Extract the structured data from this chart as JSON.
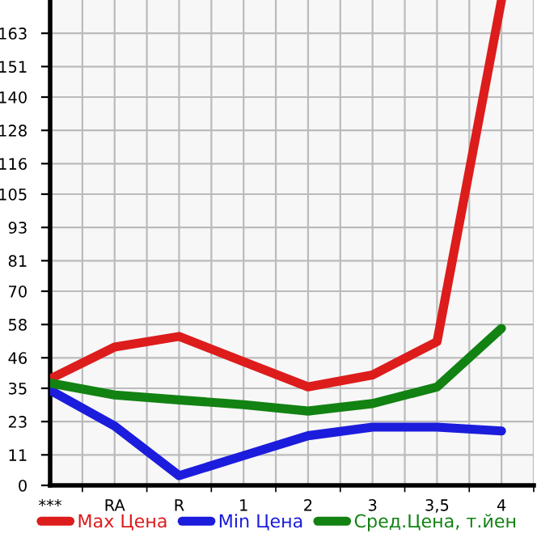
{
  "chart_data": {
    "type": "line",
    "categories": [
      "***",
      "RA",
      "R",
      "1",
      "2",
      "3",
      "3,5",
      "4"
    ],
    "series": [
      {
        "name": "Max Цена",
        "color": "#dd1c1c",
        "values": [
          38.4,
          49.9,
          53.7,
          44.6,
          35.5,
          39.8,
          51.8,
          175
        ]
      },
      {
        "name": "Min Цена",
        "color": "#1c1cdd",
        "values": [
          34.3,
          21.4,
          3.5,
          10.7,
          17.9,
          21.0,
          21.0,
          19.6
        ]
      },
      {
        "name": "Сред.Цена, т.йен",
        "color": "#128212",
        "values": [
          36.9,
          32.6,
          30.8,
          29.1,
          26.8,
          29.5,
          35.5,
          56.6
        ]
      }
    ],
    "ylim": [
      0,
      175
    ],
    "yticks": [
      0,
      11,
      23,
      35,
      46,
      58,
      70,
      81,
      93,
      105,
      116,
      128,
      140,
      151,
      163
    ],
    "grid": true,
    "legend": "bottom",
    "marker": "none",
    "line_style": "solid"
  }
}
